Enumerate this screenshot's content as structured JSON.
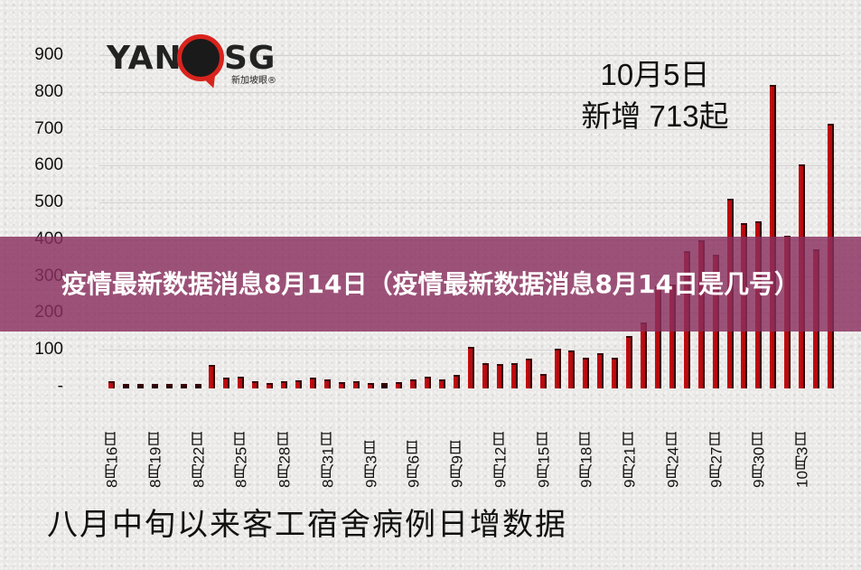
{
  "banner": {
    "title": "疫情最新数据消息8月14日（疫情最新数据消息8月14日是几号）",
    "background": "#8a305e"
  },
  "logo": {
    "left_text": "YAN",
    "right_text": "SG",
    "subtitle": "新加坡眼®",
    "pin_color": "#d9231d"
  },
  "annotation": {
    "line1": "10月5日",
    "line2": "新增 713起"
  },
  "caption": "八月中旬以来客工宿舍病例日增数据",
  "chart_data": {
    "type": "bar",
    "title": "八月中旬以来客工宿舍病例日增数据",
    "annotation": "10月5日 新增 713起",
    "xlabel": "",
    "ylabel": "",
    "ylim": [
      0,
      900
    ],
    "yticks": [
      "-",
      "100",
      "200",
      "300",
      "400",
      "500",
      "600",
      "700",
      "800",
      "900"
    ],
    "xtick_labels": [
      "8月16日",
      "8月19日",
      "8月22日",
      "8月25日",
      "8月28日",
      "8月31日",
      "9月3日",
      "9月6日",
      "9月9日",
      "9月12日",
      "9月15日",
      "9月18日",
      "9月21日",
      "9月24日",
      "9月27日",
      "9月30日",
      "10月3日"
    ],
    "grid": true,
    "bar_color": "#c00a0f",
    "categories": [
      "8月16日",
      "8月17日",
      "8月18日",
      "8月19日",
      "8月20日",
      "8月21日",
      "8月22日",
      "8月23日",
      "8月24日",
      "8月25日",
      "8月26日",
      "8月27日",
      "8月28日",
      "8月29日",
      "8月30日",
      "8月31日",
      "9月1日",
      "9月2日",
      "9月3日",
      "9月4日",
      "9月5日",
      "9月6日",
      "9月7日",
      "9月8日",
      "9月9日",
      "9月10日",
      "9月11日",
      "9月12日",
      "9月13日",
      "9月14日",
      "9月15日",
      "9月16日",
      "9月17日",
      "9月18日",
      "9月19日",
      "9月20日",
      "9月21日",
      "9月22日",
      "9月23日",
      "9月24日",
      "9月25日",
      "9月26日",
      "9月27日",
      "9月28日",
      "9月29日",
      "9月30日",
      "10月1日",
      "10月2日",
      "10月3日",
      "10月4日",
      "10月5日"
    ],
    "values": [
      15,
      3,
      4,
      3,
      4,
      3,
      5,
      60,
      25,
      27,
      15,
      10,
      15,
      17,
      25,
      20,
      13,
      15,
      10,
      9,
      12,
      20,
      28,
      20,
      33,
      108,
      64,
      62,
      64,
      77,
      35,
      104,
      97,
      79,
      90,
      78,
      137,
      175,
      273,
      278,
      368,
      398,
      358,
      511,
      445,
      448,
      820,
      410,
      603,
      373,
      713
    ]
  }
}
